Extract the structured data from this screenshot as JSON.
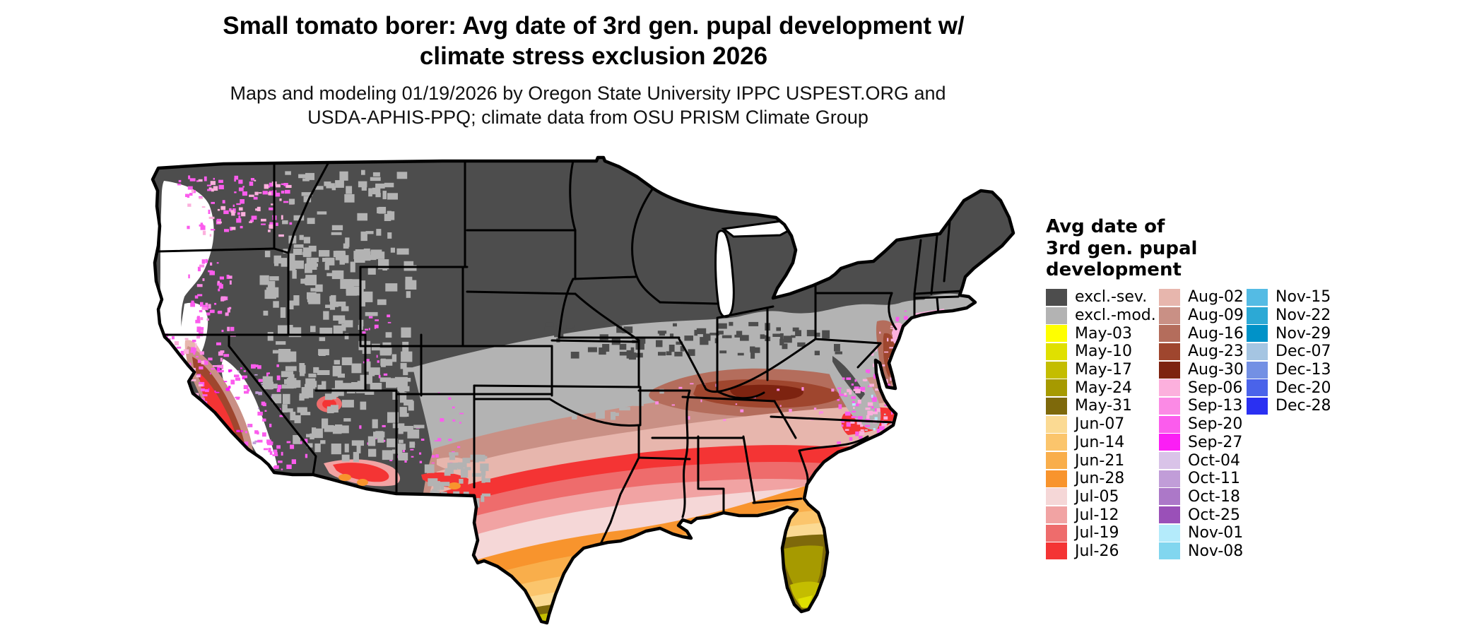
{
  "title": {
    "line1": "Small tomato borer: Avg date of 3rd gen. pupal development w/",
    "line2": "climate stress exclusion 2026"
  },
  "subtitle": {
    "line1": "Maps and modeling 01/19/2026 by Oregon State University IPPC USPEST.ORG and",
    "line2": "USDA-APHIS-PPQ; climate data from OSU PRISM Climate Group"
  },
  "legend": {
    "title_lines": [
      "Avg date of",
      "3rd gen. pupal",
      "development"
    ],
    "columns": [
      [
        {
          "label": "excl.-sev.",
          "color": "#4d4d4d"
        },
        {
          "label": "excl.-mod.",
          "color": "#b3b3b3"
        },
        {
          "label": "May-03",
          "color": "#ffff00"
        },
        {
          "label": "May-10",
          "color": "#e0e000"
        },
        {
          "label": "May-17",
          "color": "#c4bd00"
        },
        {
          "label": "May-24",
          "color": "#a69a00"
        },
        {
          "label": "May-31",
          "color": "#7e690b"
        },
        {
          "label": "Jun-07",
          "color": "#fbda93"
        },
        {
          "label": "Jun-14",
          "color": "#fbc56c"
        },
        {
          "label": "Jun-21",
          "color": "#f9ae4b"
        },
        {
          "label": "Jun-28",
          "color": "#f8942d"
        },
        {
          "label": "Jul-05",
          "color": "#f5d7d7"
        },
        {
          "label": "Jul-12",
          "color": "#f1a3a3"
        },
        {
          "label": "Jul-19",
          "color": "#ee6c6c"
        },
        {
          "label": "Jul-26",
          "color": "#f43434"
        }
      ],
      [
        {
          "label": "Aug-02",
          "color": "#e7b6ad"
        },
        {
          "label": "Aug-09",
          "color": "#c99085"
        },
        {
          "label": "Aug-16",
          "color": "#b46d5c"
        },
        {
          "label": "Aug-23",
          "color": "#9f462e"
        },
        {
          "label": "Aug-30",
          "color": "#7d2310"
        },
        {
          "label": "Sep-06",
          "color": "#fcb0dd"
        },
        {
          "label": "Sep-13",
          "color": "#fb8ae5"
        },
        {
          "label": "Sep-20",
          "color": "#fb5ced"
        },
        {
          "label": "Sep-27",
          "color": "#fb1ef5"
        },
        {
          "label": "Oct-04",
          "color": "#d9c3e8"
        },
        {
          "label": "Oct-11",
          "color": "#c19dd8"
        },
        {
          "label": "Oct-18",
          "color": "#ac78c8"
        },
        {
          "label": "Oct-25",
          "color": "#9a50b8"
        },
        {
          "label": "Nov-01",
          "color": "#b4ebfb"
        },
        {
          "label": "Nov-08",
          "color": "#81d6ef"
        }
      ],
      [
        {
          "label": "Nov-15",
          "color": "#54bbe4"
        },
        {
          "label": "Nov-22",
          "color": "#2ca9d5"
        },
        {
          "label": "Nov-29",
          "color": "#0092c8"
        },
        {
          "label": "Dec-07",
          "color": "#a5c5e2"
        },
        {
          "label": "Dec-13",
          "color": "#7390e4"
        },
        {
          "label": "Dec-20",
          "color": "#4a63ea"
        },
        {
          "label": "Dec-28",
          "color": "#2a30f2"
        }
      ]
    ]
  },
  "map": {
    "region": "Continental United States",
    "background": "#ffffff",
    "border_color": "#000000",
    "water_color": "#ffffff"
  }
}
